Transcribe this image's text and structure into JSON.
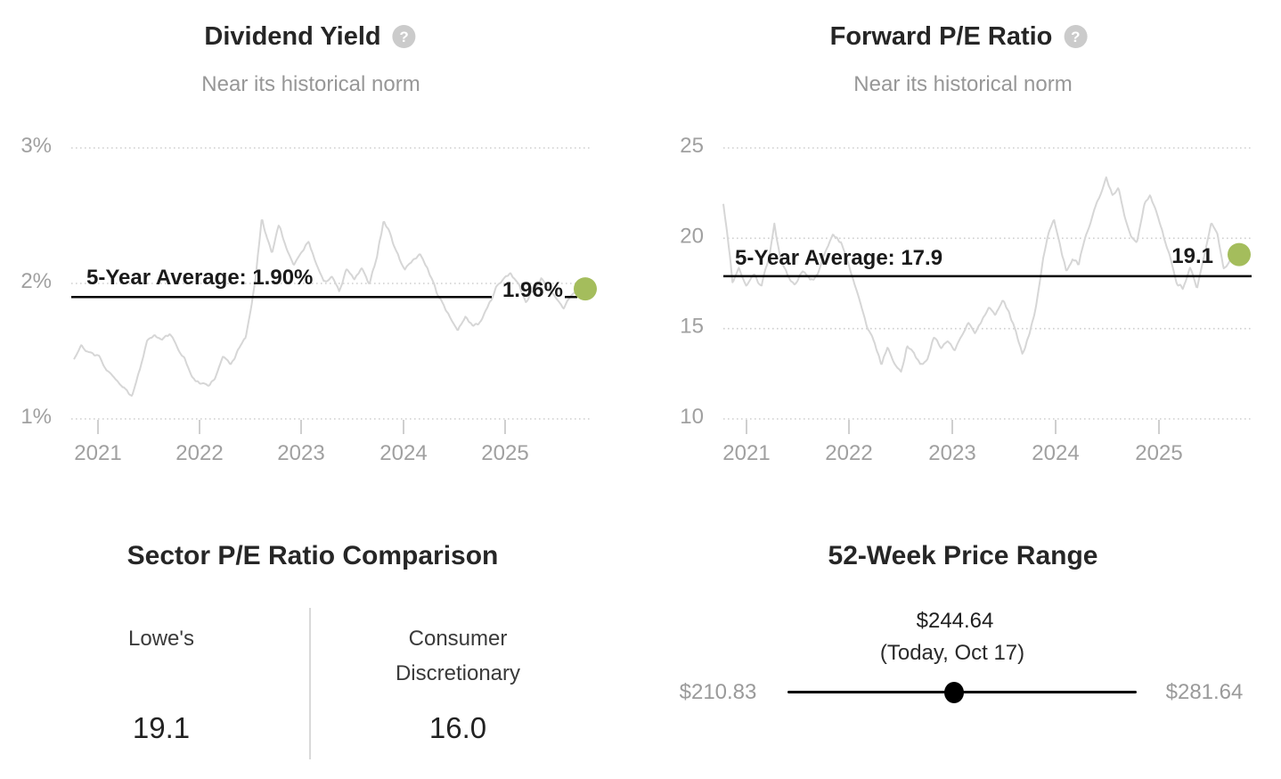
{
  "icons": {
    "help_glyph": "?"
  },
  "colors": {
    "series": "#d6d6d6",
    "grid": "#cfcfcf",
    "axis_label": "#a0a0a0",
    "average_line": "#000000",
    "label_dark": "#1a1a1a",
    "dot_green": "#a4bd5c",
    "slider": "#000000"
  },
  "panels": {
    "dividend_yield": {
      "title": "Dividend Yield",
      "subtitle": "Near its historical norm"
    },
    "forward_pe": {
      "title": "Forward P/E Ratio",
      "subtitle": "Near its historical norm"
    },
    "sector_pe": {
      "title": "Sector P/E Ratio Comparison",
      "columns": [
        {
          "label_lines": [
            "Lowe's"
          ],
          "value": "19.1"
        },
        {
          "label_lines": [
            "Consumer",
            "Discretionary"
          ],
          "value": "16.0"
        }
      ]
    },
    "price_range": {
      "title": "52-Week Price Range",
      "current_label": "$244.64",
      "current_note": "(Today, Oct 17)",
      "low_label": "$210.83",
      "high_label": "$281.64",
      "low_value": 210.83,
      "high_value": 281.64,
      "current_value": 244.64
    }
  },
  "chart_data": [
    {
      "id": "dividend_yield",
      "type": "line",
      "title": "Dividend Yield",
      "subtitle": "Near its historical norm",
      "unit": "%",
      "ylim": [
        1,
        3
      ],
      "y_ticks": [
        {
          "label": "3%",
          "value": 3
        },
        {
          "label": "2%",
          "value": 2
        },
        {
          "label": "1%",
          "value": 1
        }
      ],
      "x_ticks": [
        "2021",
        "2022",
        "2023",
        "2024",
        "2025"
      ],
      "grid": true,
      "average": {
        "value": 1.9,
        "label": "5-Year Average: 1.90%"
      },
      "current": {
        "value": 1.96,
        "label": "1.96%"
      },
      "keypoints": [
        [
          0,
          1.44
        ],
        [
          0.015,
          1.55
        ],
        [
          0.03,
          1.5
        ],
        [
          0.05,
          1.46
        ],
        [
          0.065,
          1.35
        ],
        [
          0.08,
          1.3
        ],
        [
          0.1,
          1.22
        ],
        [
          0.115,
          1.18
        ],
        [
          0.13,
          1.35
        ],
        [
          0.145,
          1.58
        ],
        [
          0.16,
          1.62
        ],
        [
          0.175,
          1.58
        ],
        [
          0.19,
          1.63
        ],
        [
          0.205,
          1.52
        ],
        [
          0.22,
          1.45
        ],
        [
          0.235,
          1.32
        ],
        [
          0.25,
          1.27
        ],
        [
          0.265,
          1.24
        ],
        [
          0.28,
          1.3
        ],
        [
          0.295,
          1.45
        ],
        [
          0.31,
          1.4
        ],
        [
          0.325,
          1.52
        ],
        [
          0.34,
          1.6
        ],
        [
          0.35,
          1.82
        ],
        [
          0.36,
          2.05
        ],
        [
          0.372,
          2.5
        ],
        [
          0.382,
          2.33
        ],
        [
          0.392,
          2.2
        ],
        [
          0.405,
          2.43
        ],
        [
          0.42,
          2.26
        ],
        [
          0.435,
          2.12
        ],
        [
          0.45,
          2.22
        ],
        [
          0.465,
          2.32
        ],
        [
          0.48,
          2.14
        ],
        [
          0.495,
          2.0
        ],
        [
          0.51,
          2.06
        ],
        [
          0.525,
          1.95
        ],
        [
          0.54,
          2.12
        ],
        [
          0.555,
          2.03
        ],
        [
          0.57,
          2.1
        ],
        [
          0.585,
          2.0
        ],
        [
          0.6,
          2.2
        ],
        [
          0.613,
          2.46
        ],
        [
          0.625,
          2.35
        ],
        [
          0.64,
          2.2
        ],
        [
          0.655,
          2.1
        ],
        [
          0.67,
          2.18
        ],
        [
          0.685,
          2.22
        ],
        [
          0.7,
          2.1
        ],
        [
          0.715,
          1.98
        ],
        [
          0.73,
          1.85
        ],
        [
          0.745,
          1.75
        ],
        [
          0.76,
          1.68
        ],
        [
          0.775,
          1.77
        ],
        [
          0.79,
          1.7
        ],
        [
          0.805,
          1.72
        ],
        [
          0.82,
          1.85
        ],
        [
          0.835,
          1.96
        ],
        [
          0.85,
          2.03
        ],
        [
          0.865,
          2.07
        ],
        [
          0.88,
          1.98
        ],
        [
          0.895,
          1.86
        ],
        [
          0.91,
          1.93
        ],
        [
          0.925,
          2.05
        ],
        [
          0.94,
          1.98
        ],
        [
          0.955,
          1.88
        ],
        [
          0.97,
          1.8
        ],
        [
          0.985,
          1.9
        ],
        [
          1,
          1.96
        ]
      ]
    },
    {
      "id": "forward_pe",
      "type": "line",
      "title": "Forward P/E Ratio",
      "subtitle": "Near its historical norm",
      "unit": "",
      "ylim": [
        10,
        25
      ],
      "y_ticks": [
        {
          "label": "25",
          "value": 25
        },
        {
          "label": "20",
          "value": 20
        },
        {
          "label": "15",
          "value": 15
        },
        {
          "label": "10",
          "value": 10
        }
      ],
      "x_ticks": [
        "2021",
        "2022",
        "2023",
        "2024",
        "2025"
      ],
      "grid": true,
      "average": {
        "value": 17.9,
        "label": "5-Year Average: 17.9"
      },
      "current": {
        "value": 19.1,
        "label": "19.1"
      },
      "keypoints": [
        [
          0,
          21.9
        ],
        [
          0.008,
          20.2
        ],
        [
          0.018,
          17.6
        ],
        [
          0.03,
          18.5
        ],
        [
          0.045,
          17.4
        ],
        [
          0.06,
          18.1
        ],
        [
          0.075,
          17.6
        ],
        [
          0.09,
          19.2
        ],
        [
          0.1,
          21.0
        ],
        [
          0.112,
          19.0
        ],
        [
          0.125,
          18.2
        ],
        [
          0.14,
          17.6
        ],
        [
          0.155,
          18.4
        ],
        [
          0.17,
          17.8
        ],
        [
          0.185,
          18.2
        ],
        [
          0.2,
          19.4
        ],
        [
          0.215,
          20.4
        ],
        [
          0.23,
          19.9
        ],
        [
          0.245,
          18.6
        ],
        [
          0.258,
          17.2
        ],
        [
          0.27,
          16.2
        ],
        [
          0.283,
          15.0
        ],
        [
          0.296,
          14.2
        ],
        [
          0.31,
          12.9
        ],
        [
          0.322,
          13.9
        ],
        [
          0.335,
          13.1
        ],
        [
          0.348,
          12.6
        ],
        [
          0.36,
          13.9
        ],
        [
          0.373,
          13.5
        ],
        [
          0.386,
          12.9
        ],
        [
          0.4,
          13.4
        ],
        [
          0.413,
          14.7
        ],
        [
          0.427,
          14.0
        ],
        [
          0.44,
          14.4
        ],
        [
          0.453,
          13.8
        ],
        [
          0.467,
          14.6
        ],
        [
          0.48,
          15.2
        ],
        [
          0.493,
          14.7
        ],
        [
          0.507,
          15.5
        ],
        [
          0.52,
          16.2
        ],
        [
          0.533,
          15.7
        ],
        [
          0.547,
          16.5
        ],
        [
          0.56,
          15.9
        ],
        [
          0.573,
          14.8
        ],
        [
          0.586,
          13.6
        ],
        [
          0.6,
          14.9
        ],
        [
          0.613,
          16.4
        ],
        [
          0.626,
          18.8
        ],
        [
          0.637,
          20.2
        ],
        [
          0.648,
          21.1
        ],
        [
          0.66,
          19.5
        ],
        [
          0.672,
          18.1
        ],
        [
          0.684,
          18.9
        ],
        [
          0.696,
          18.4
        ],
        [
          0.71,
          20.1
        ],
        [
          0.724,
          21.4
        ],
        [
          0.738,
          22.5
        ],
        [
          0.75,
          23.5
        ],
        [
          0.762,
          22.5
        ],
        [
          0.774,
          22.9
        ],
        [
          0.786,
          21.3
        ],
        [
          0.798,
          20.1
        ],
        [
          0.81,
          19.6
        ],
        [
          0.824,
          21.9
        ],
        [
          0.836,
          22.3
        ],
        [
          0.848,
          21.5
        ],
        [
          0.86,
          20.5
        ],
        [
          0.874,
          19.3
        ],
        [
          0.888,
          17.6
        ],
        [
          0.9,
          17.3
        ],
        [
          0.914,
          18.4
        ],
        [
          0.928,
          17.4
        ],
        [
          0.942,
          19.1
        ],
        [
          0.956,
          21.0
        ],
        [
          0.968,
          20.3
        ],
        [
          0.98,
          18.4
        ],
        [
          0.99,
          18.8
        ],
        [
          1,
          19.1
        ]
      ]
    }
  ]
}
